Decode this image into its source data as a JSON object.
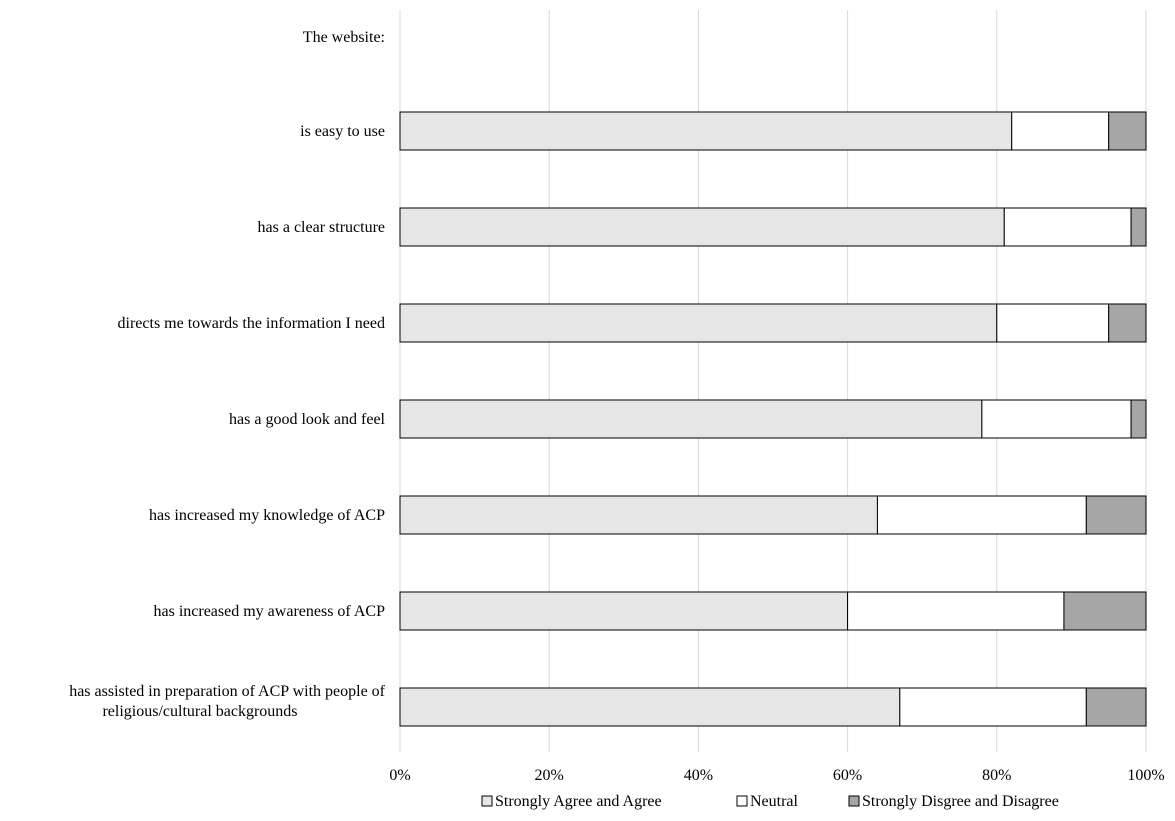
{
  "chart_data": {
    "type": "bar",
    "orientation": "horizontal",
    "stacked": true,
    "percent": true,
    "header_label": "The website:",
    "categories": [
      "is easy to use",
      "has a clear structure",
      "directs me towards the information I need",
      "has a good look and feel",
      "has increased my knowledge of ACP",
      "has increased my awareness of ACP",
      "has assisted in preparation of ACP with people of religious/cultural backgrounds"
    ],
    "series": [
      {
        "name": "Strongly Agree and Agree",
        "color": "#e6e6e6",
        "values": [
          82,
          81,
          80,
          78,
          64,
          60,
          67
        ]
      },
      {
        "name": "Neutral",
        "color": "#ffffff",
        "values": [
          13,
          17,
          15,
          20,
          28,
          29,
          25
        ]
      },
      {
        "name": "Strongly Disgree and Disagree",
        "color": "#a6a6a6",
        "values": [
          5,
          2,
          5,
          2,
          8,
          11,
          8
        ]
      }
    ],
    "xlim": [
      0,
      100
    ],
    "xticks": [
      "0%",
      "20%",
      "40%",
      "60%",
      "80%",
      "100%"
    ],
    "grid": true,
    "legend_position": "bottom"
  }
}
